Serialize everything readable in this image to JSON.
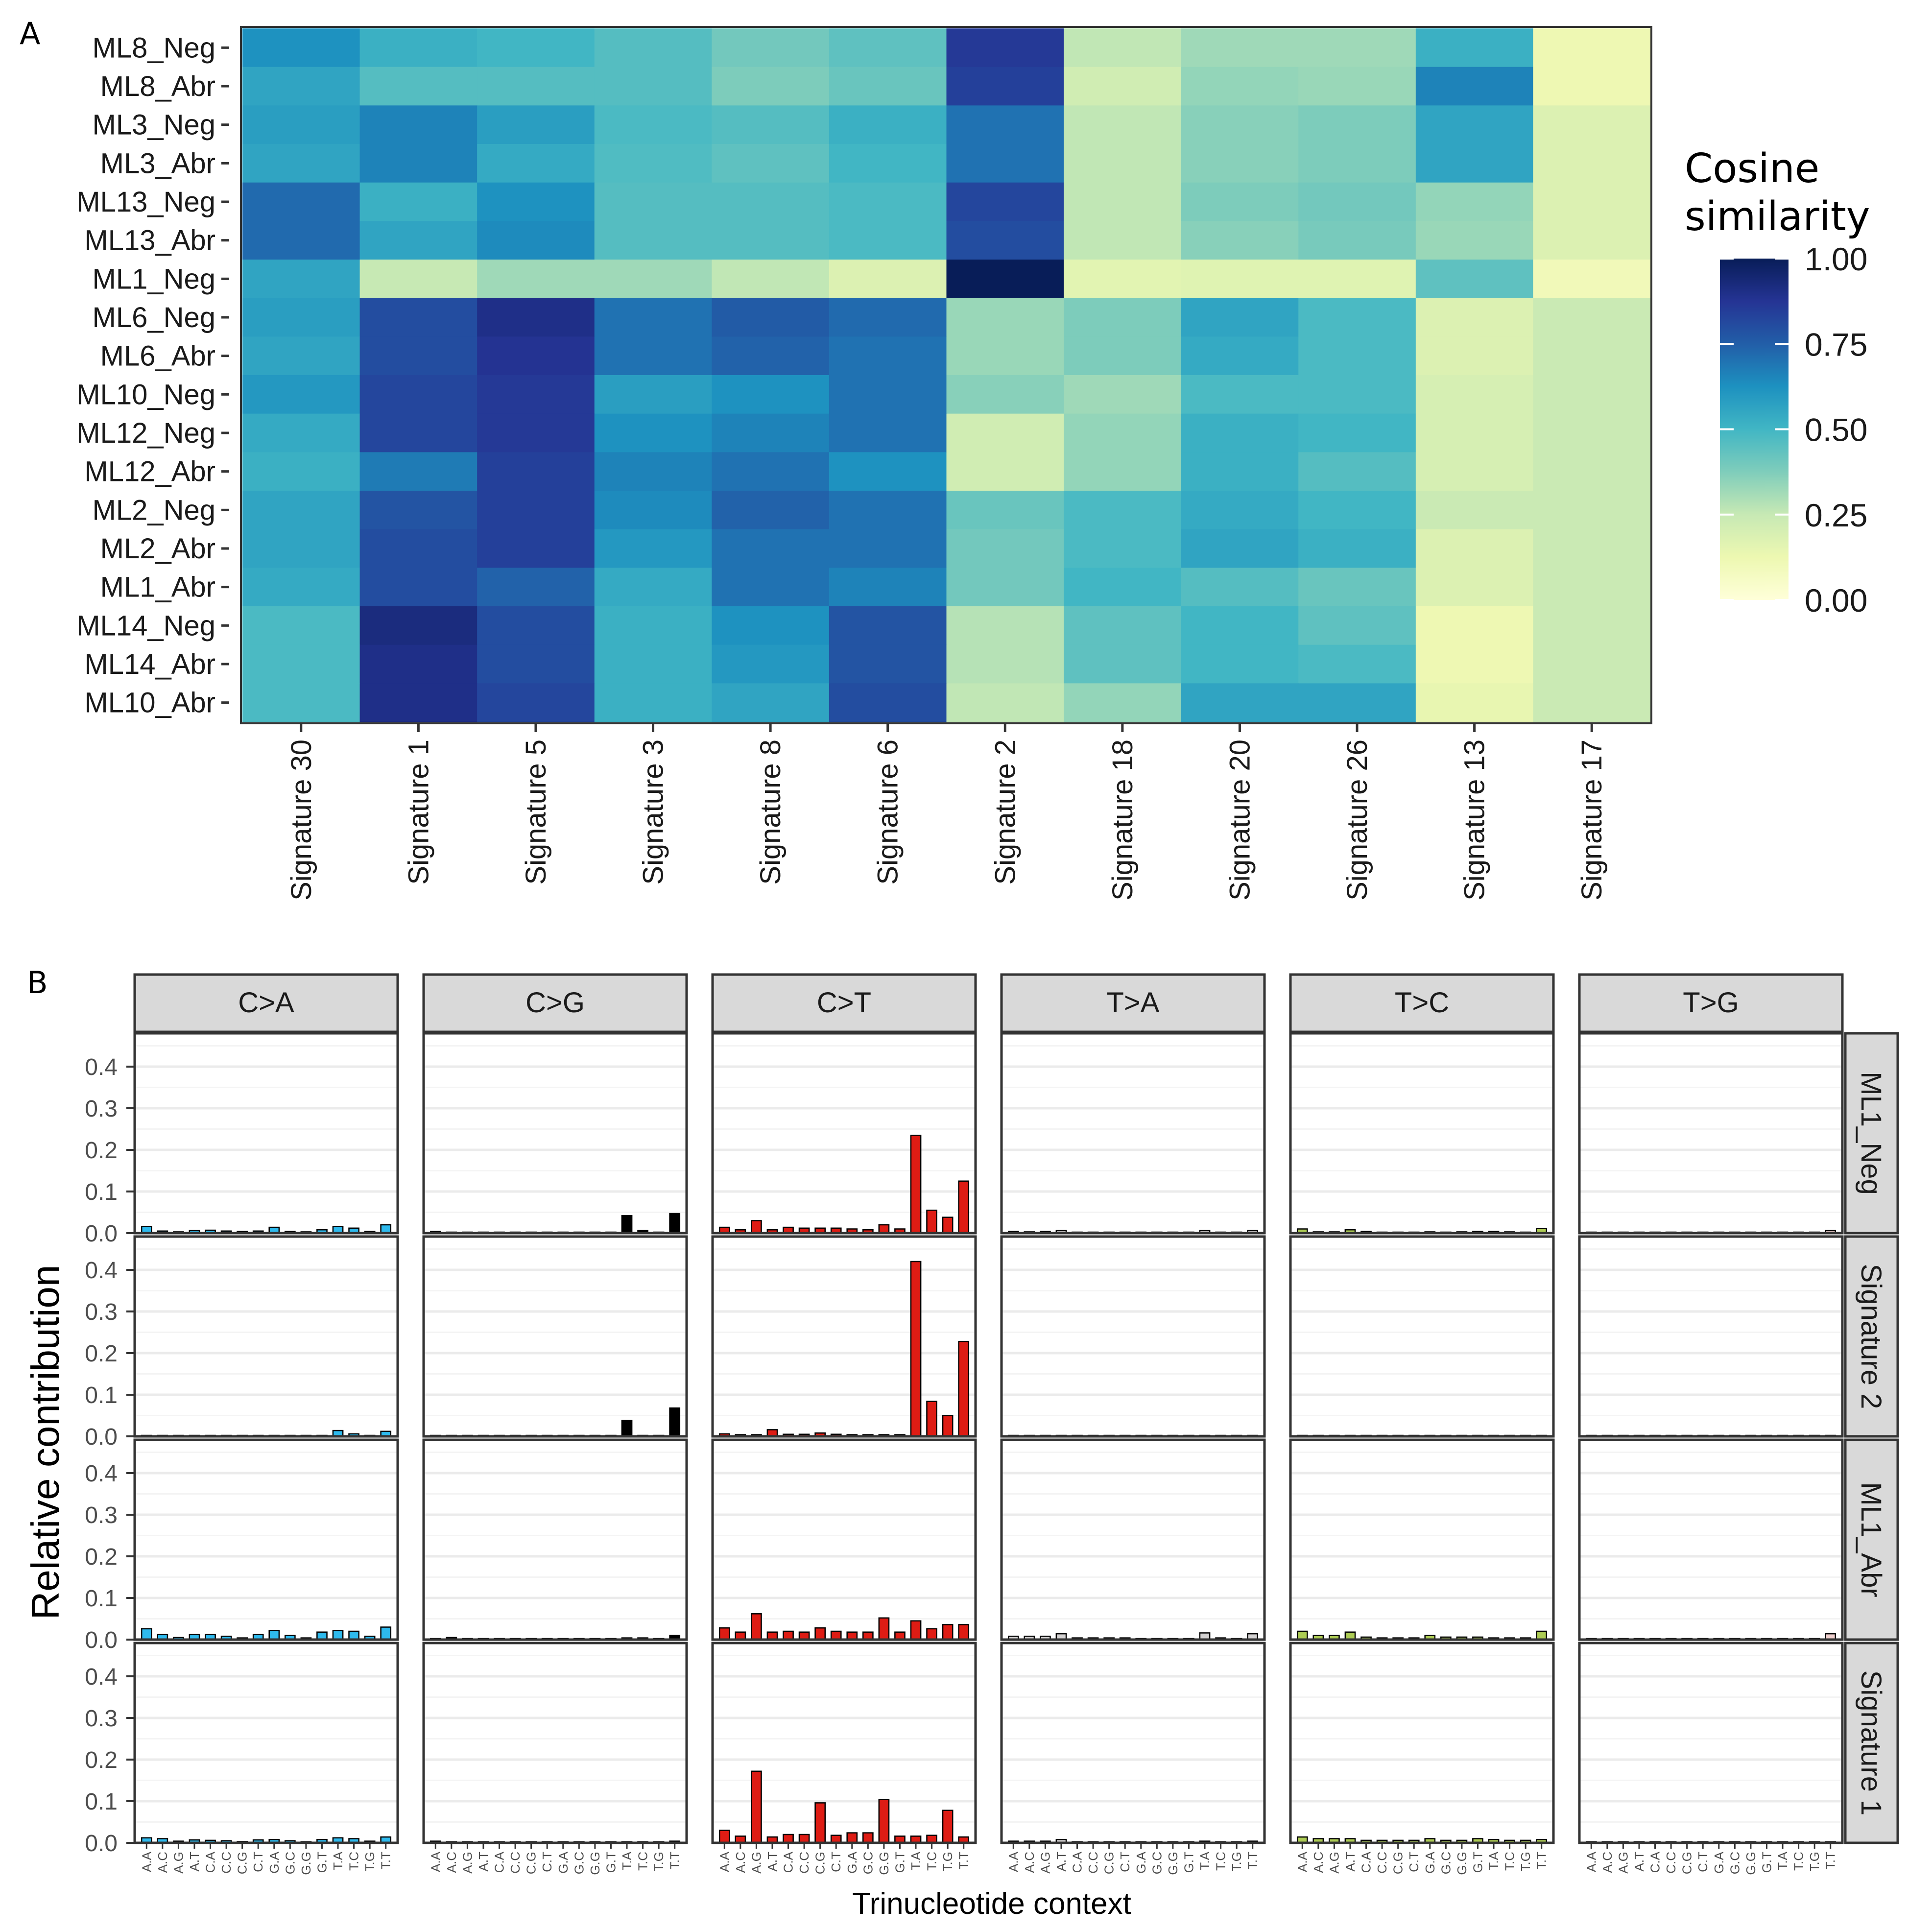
{
  "chart_data": [
    {
      "type": "heatmap",
      "panel_label": "A",
      "rows": [
        "ML8_Neg",
        "ML8_Abr",
        "ML3_Neg",
        "ML3_Abr",
        "ML13_Neg",
        "ML13_Abr",
        "ML1_Neg",
        "ML6_Neg",
        "ML6_Abr",
        "ML10_Neg",
        "ML12_Neg",
        "ML12_Abr",
        "ML2_Neg",
        "ML2_Abr",
        "ML1_Abr",
        "ML14_Neg",
        "ML14_Abr",
        "ML10_Abr"
      ],
      "columns": [
        "Signature 30",
        "Signature 1",
        "Signature 5",
        "Signature 3",
        "Signature 8",
        "Signature 6",
        "Signature 2",
        "Signature 18",
        "Signature 20",
        "Signature 26",
        "Signature 13",
        "Signature 17"
      ],
      "values": [
        [
          0.62,
          0.52,
          0.5,
          0.46,
          0.4,
          0.44,
          0.86,
          0.26,
          0.32,
          0.32,
          0.52,
          0.12
        ],
        [
          0.56,
          0.46,
          0.46,
          0.46,
          0.38,
          0.42,
          0.84,
          0.22,
          0.34,
          0.33,
          0.66,
          0.12
        ],
        [
          0.58,
          0.66,
          0.58,
          0.48,
          0.46,
          0.52,
          0.7,
          0.26,
          0.36,
          0.38,
          0.56,
          0.18
        ],
        [
          0.56,
          0.66,
          0.54,
          0.47,
          0.44,
          0.5,
          0.7,
          0.26,
          0.36,
          0.38,
          0.56,
          0.18
        ],
        [
          0.72,
          0.52,
          0.62,
          0.46,
          0.46,
          0.48,
          0.82,
          0.26,
          0.38,
          0.4,
          0.34,
          0.18
        ],
        [
          0.72,
          0.56,
          0.64,
          0.46,
          0.46,
          0.48,
          0.8,
          0.26,
          0.36,
          0.39,
          0.33,
          0.18
        ],
        [
          0.56,
          0.25,
          0.32,
          0.32,
          0.26,
          0.18,
          1.0,
          0.16,
          0.17,
          0.17,
          0.44,
          0.1
        ],
        [
          0.58,
          0.8,
          0.9,
          0.7,
          0.76,
          0.72,
          0.33,
          0.38,
          0.56,
          0.48,
          0.18,
          0.24
        ],
        [
          0.56,
          0.8,
          0.88,
          0.7,
          0.74,
          0.7,
          0.33,
          0.38,
          0.54,
          0.48,
          0.18,
          0.24
        ],
        [
          0.6,
          0.82,
          0.86,
          0.58,
          0.62,
          0.7,
          0.36,
          0.32,
          0.48,
          0.48,
          0.2,
          0.24
        ],
        [
          0.54,
          0.82,
          0.86,
          0.62,
          0.66,
          0.7,
          0.22,
          0.34,
          0.52,
          0.5,
          0.2,
          0.24
        ],
        [
          0.52,
          0.68,
          0.84,
          0.66,
          0.7,
          0.62,
          0.22,
          0.34,
          0.52,
          0.46,
          0.2,
          0.24
        ],
        [
          0.56,
          0.78,
          0.84,
          0.64,
          0.74,
          0.7,
          0.42,
          0.48,
          0.54,
          0.5,
          0.24,
          0.24
        ],
        [
          0.56,
          0.8,
          0.84,
          0.6,
          0.7,
          0.7,
          0.4,
          0.48,
          0.56,
          0.52,
          0.18,
          0.24
        ],
        [
          0.54,
          0.8,
          0.74,
          0.54,
          0.7,
          0.66,
          0.4,
          0.5,
          0.46,
          0.42,
          0.18,
          0.24
        ],
        [
          0.48,
          0.92,
          0.8,
          0.52,
          0.62,
          0.78,
          0.28,
          0.44,
          0.5,
          0.44,
          0.12,
          0.24
        ],
        [
          0.48,
          0.9,
          0.8,
          0.52,
          0.6,
          0.78,
          0.28,
          0.44,
          0.5,
          0.48,
          0.12,
          0.24
        ],
        [
          0.48,
          0.9,
          0.82,
          0.52,
          0.56,
          0.8,
          0.26,
          0.34,
          0.56,
          0.56,
          0.14,
          0.24
        ]
      ],
      "legend": {
        "title_line1": "Cosine",
        "title_line2": "similarity",
        "ticks": [
          "1.00",
          "0.75",
          "0.50",
          "0.25",
          "0.00"
        ],
        "range": [
          0,
          1
        ]
      },
      "colors": {
        "low": "#ffffd9",
        "high": "#081d58"
      }
    },
    {
      "type": "bar",
      "panel_label": "B",
      "ylabel": "Relative contribution",
      "xlabel": "Trinucleotide context",
      "ylim": [
        0,
        0.48
      ],
      "yticks": [
        "0.0",
        "0.1",
        "0.2",
        "0.3",
        "0.4"
      ],
      "column_facets": [
        "C>A",
        "C>G",
        "C>T",
        "T>A",
        "T>C",
        "T>G"
      ],
      "row_facets": [
        "ML1_Neg",
        "Signature 2",
        "ML1_Abr",
        "Signature 1"
      ],
      "context_labels": [
        "A.A",
        "A.C",
        "A.G",
        "A.T",
        "C.A",
        "C.C",
        "C.G",
        "C.T",
        "G.A",
        "G.C",
        "G.G",
        "G.T",
        "T.A",
        "T.C",
        "T.G",
        "T.T"
      ],
      "facet_colors": [
        "#2ebaed",
        "#000000",
        "#de1c14",
        "#d4d2d2",
        "#adcc54",
        "#f0d0ce"
      ],
      "series": [
        {
          "name": "ML1_Neg",
          "values": [
            [
              0.016,
              0.005,
              0.003,
              0.006,
              0.007,
              0.005,
              0.004,
              0.005,
              0.014,
              0.004,
              0.003,
              0.008,
              0.016,
              0.012,
              0.004,
              0.02
            ],
            [
              0.004,
              0.002,
              0.001,
              0.001,
              0.001,
              0.001,
              0.001,
              0.001,
              0.001,
              0.001,
              0.001,
              0.001,
              0.042,
              0.006,
              0.002,
              0.047
            ],
            [
              0.014,
              0.008,
              0.03,
              0.008,
              0.014,
              0.012,
              0.012,
              0.012,
              0.01,
              0.008,
              0.02,
              0.01,
              0.235,
              0.055,
              0.038,
              0.125
            ],
            [
              0.004,
              0.003,
              0.004,
              0.006,
              0.002,
              0.002,
              0.002,
              0.002,
              0.001,
              0.001,
              0.001,
              0.001,
              0.006,
              0.001,
              0.001,
              0.006
            ],
            [
              0.01,
              0.003,
              0.003,
              0.008,
              0.004,
              0.002,
              0.002,
              0.002,
              0.003,
              0.002,
              0.003,
              0.004,
              0.004,
              0.003,
              0.002,
              0.011
            ],
            [
              0.001,
              0.001,
              0.001,
              0.001,
              0.001,
              0.001,
              0.001,
              0.001,
              0.001,
              0.001,
              0.001,
              0.001,
              0.001,
              0.001,
              0.001,
              0.006
            ]
          ]
        },
        {
          "name": "Signature 2",
          "values": [
            [
              0.001,
              0.001,
              0.001,
              0.001,
              0.001,
              0.001,
              0.001,
              0.001,
              0.001,
              0.001,
              0.001,
              0.001,
              0.014,
              0.006,
              0.002,
              0.012
            ],
            [
              0.001,
              0.001,
              0.001,
              0.001,
              0.001,
              0.001,
              0.001,
              0.001,
              0.001,
              0.001,
              0.001,
              0.001,
              0.038,
              0.002,
              0.001,
              0.068
            ],
            [
              0.006,
              0.004,
              0.004,
              0.016,
              0.005,
              0.005,
              0.008,
              0.005,
              0.004,
              0.004,
              0.004,
              0.004,
              0.42,
              0.084,
              0.05,
              0.228
            ],
            [
              0.001,
              0.001,
              0.001,
              0.001,
              0.001,
              0.001,
              0.001,
              0.001,
              0.001,
              0.001,
              0.001,
              0.001,
              0.001,
              0.001,
              0.001,
              0.001
            ],
            [
              0.001,
              0.001,
              0.001,
              0.001,
              0.001,
              0.001,
              0.001,
              0.001,
              0.001,
              0.001,
              0.001,
              0.001,
              0.001,
              0.001,
              0.001,
              0.001
            ],
            [
              0.001,
              0.001,
              0.001,
              0.001,
              0.001,
              0.001,
              0.001,
              0.001,
              0.001,
              0.001,
              0.001,
              0.001,
              0.001,
              0.001,
              0.001,
              0.001
            ]
          ]
        },
        {
          "name": "ML1_Abr",
          "values": [
            [
              0.026,
              0.012,
              0.005,
              0.012,
              0.012,
              0.008,
              0.004,
              0.012,
              0.022,
              0.01,
              0.004,
              0.018,
              0.022,
              0.02,
              0.008,
              0.03
            ],
            [
              0.002,
              0.005,
              0.002,
              0.002,
              0.002,
              0.002,
              0.002,
              0.002,
              0.002,
              0.002,
              0.002,
              0.002,
              0.004,
              0.004,
              0.002,
              0.01
            ],
            [
              0.028,
              0.018,
              0.062,
              0.018,
              0.02,
              0.018,
              0.028,
              0.02,
              0.018,
              0.018,
              0.052,
              0.018,
              0.045,
              0.026,
              0.036,
              0.036
            ],
            [
              0.008,
              0.008,
              0.008,
              0.014,
              0.004,
              0.004,
              0.004,
              0.004,
              0.002,
              0.002,
              0.002,
              0.002,
              0.016,
              0.004,
              0.002,
              0.014
            ],
            [
              0.02,
              0.01,
              0.01,
              0.018,
              0.006,
              0.004,
              0.004,
              0.004,
              0.01,
              0.006,
              0.006,
              0.006,
              0.004,
              0.004,
              0.004,
              0.02
            ],
            [
              0.001,
              0.001,
              0.001,
              0.001,
              0.001,
              0.001,
              0.001,
              0.001,
              0.001,
              0.001,
              0.001,
              0.001,
              0.001,
              0.001,
              0.001,
              0.014
            ]
          ]
        },
        {
          "name": "Signature 1",
          "values": [
            [
              0.012,
              0.01,
              0.004,
              0.007,
              0.006,
              0.005,
              0.003,
              0.007,
              0.008,
              0.005,
              0.002,
              0.008,
              0.012,
              0.01,
              0.004,
              0.014
            ],
            [
              0.004,
              0.002,
              0.002,
              0.002,
              0.002,
              0.002,
              0.002,
              0.002,
              0.002,
              0.002,
              0.002,
              0.002,
              0.002,
              0.002,
              0.002,
              0.004
            ],
            [
              0.03,
              0.016,
              0.172,
              0.014,
              0.02,
              0.02,
              0.096,
              0.018,
              0.024,
              0.024,
              0.104,
              0.016,
              0.016,
              0.018,
              0.078,
              0.014
            ],
            [
              0.004,
              0.004,
              0.004,
              0.008,
              0.002,
              0.002,
              0.002,
              0.002,
              0.002,
              0.002,
              0.002,
              0.002,
              0.004,
              0.002,
              0.002,
              0.004
            ],
            [
              0.014,
              0.01,
              0.01,
              0.01,
              0.006,
              0.006,
              0.006,
              0.006,
              0.01,
              0.006,
              0.006,
              0.01,
              0.008,
              0.006,
              0.006,
              0.008
            ],
            [
              0.002,
              0.002,
              0.002,
              0.002,
              0.002,
              0.002,
              0.002,
              0.002,
              0.002,
              0.002,
              0.002,
              0.002,
              0.002,
              0.002,
              0.002,
              0.002
            ]
          ]
        }
      ]
    }
  ]
}
